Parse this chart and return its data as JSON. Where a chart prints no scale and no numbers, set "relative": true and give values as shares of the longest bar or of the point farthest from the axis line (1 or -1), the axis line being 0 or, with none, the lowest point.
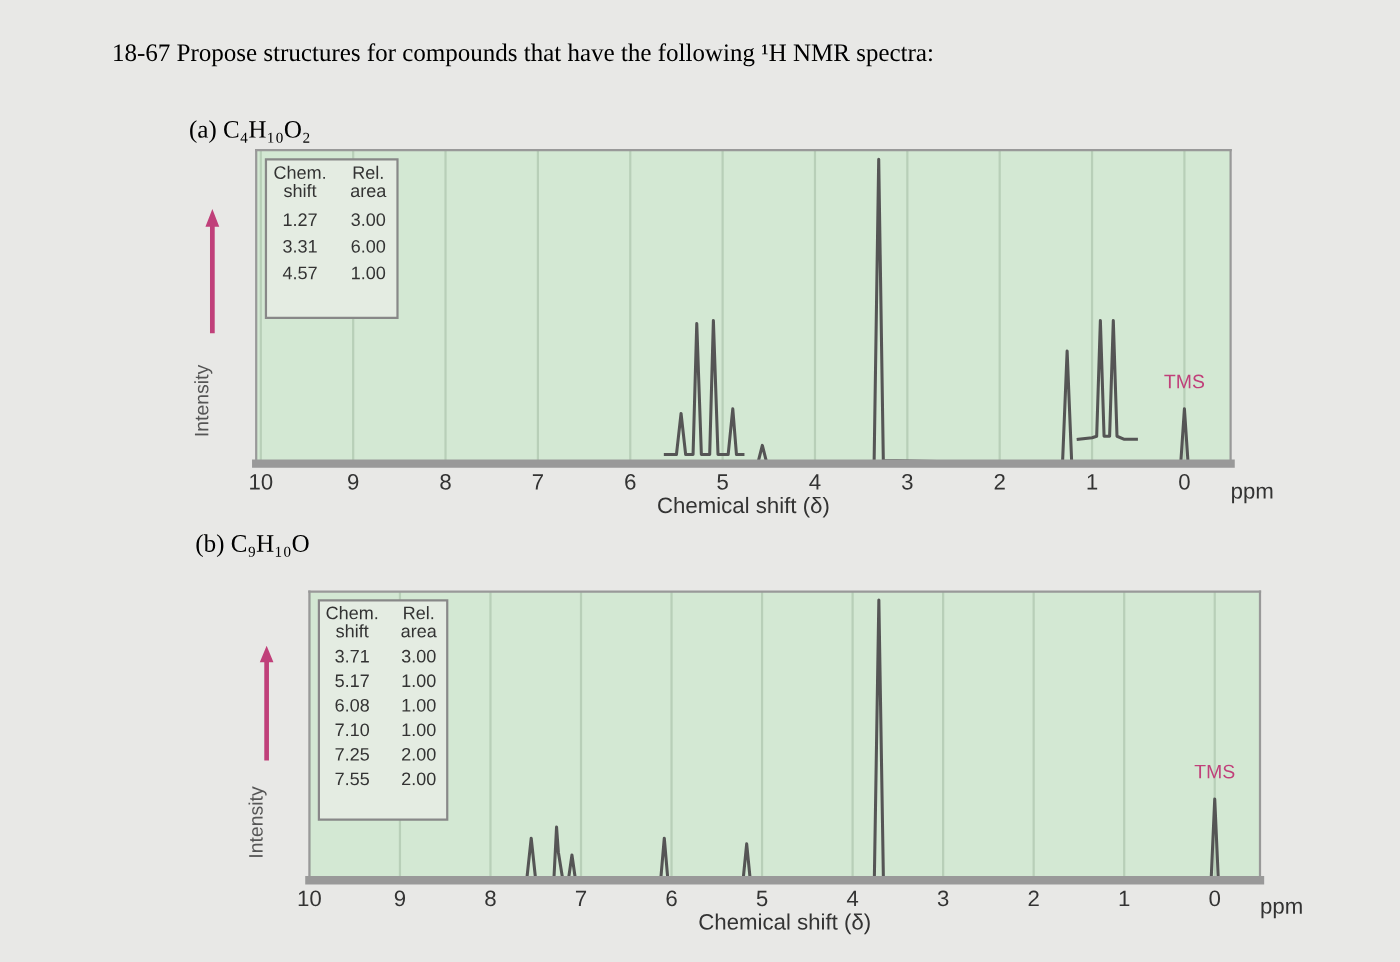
{
  "chart_data": [
    {
      "type": "line",
      "title": "18-67 Propose structures for compounds that have the following ¹H NMR spectra:",
      "subtitle": "(a) C₄H₁₀O₂",
      "xlabel": "Chemical shift (δ)",
      "ylabel": "Intensity",
      "relative": true,
      "grid": "x",
      "xlim": [
        10.05,
        -0.5
      ],
      "xticks": [
        10,
        9,
        8,
        7,
        6,
        5,
        4,
        3,
        2,
        1,
        0
      ],
      "legend": false,
      "series": [
        {
          "color": "#555555",
          "x": [
            10.05,
            4.62,
            4.57,
            4.52,
            3.36,
            3.31,
            3.26,
            1.32,
            1.27,
            1.22,
            0.04,
            0,
            -0.04,
            -0.5
          ],
          "values": [
            0,
            0,
            0.06,
            0,
            0,
            1.0,
            0.01,
            0,
            0.37,
            0,
            0,
            0.18,
            0,
            0
          ]
        },
        {
          "color": "#555555",
          "x": [
            5.62,
            5.5,
            5.45,
            5.4,
            5.32,
            5.28,
            5.23,
            5.14,
            5.1,
            5.05,
            4.94,
            4.89,
            4.85,
            4.78
          ],
          "values": [
            0.03,
            0.03,
            0.165,
            0.03,
            0.03,
            0.46,
            0.03,
            0.03,
            0.47,
            0.03,
            0.03,
            0.18,
            0.03,
            0.03
          ]
        },
        {
          "color": "#555555",
          "x": [
            1.15,
            1.0,
            0.95,
            0.91,
            0.87,
            0.81,
            0.77,
            0.73,
            0.65,
            0.52
          ],
          "values": [
            0.08,
            0.085,
            0.09,
            0.47,
            0.09,
            0.09,
            0.47,
            0.09,
            0.08,
            0.08
          ]
        }
      ],
      "annotations": [
        "Chem.\nshift",
        "Rel.\narea",
        "1.27",
        "3.00",
        "3.31",
        "6.00",
        "4.57",
        "1.00",
        "ppm",
        {
          "text": "TMS",
          "x": 0,
          "y": 0.18
        }
      ]
    },
    {
      "type": "line",
      "title": "(b) C₉H₁₀O",
      "xlabel": "Chemical shift (δ)",
      "ylabel": "Intensity",
      "relative": true,
      "grid": "x",
      "xlim": [
        10,
        -0.5
      ],
      "xticks": [
        10,
        9,
        8,
        7,
        6,
        5,
        4,
        3,
        2,
        1,
        0
      ],
      "legend": false,
      "series": [
        {
          "color": "#555555",
          "x": [
            10,
            7.6,
            7.55,
            7.5,
            7.3,
            7.27,
            7.25,
            7.2,
            7.14,
            7.1,
            7.06,
            6.12,
            6.08,
            6.04,
            5.21,
            5.17,
            5.13,
            3.76,
            3.71,
            3.66,
            0.04,
            0,
            -0.04,
            -0.5
          ],
          "values": [
            0,
            0,
            0.15,
            0,
            0,
            0.19,
            0.1,
            0,
            0,
            0.09,
            0,
            0,
            0.15,
            0,
            0,
            0.13,
            0,
            0,
            1.0,
            0.01,
            0,
            0.29,
            0,
            0
          ]
        }
      ],
      "annotations": [
        "Chem.\nshift",
        "Rel.\narea",
        "3.71",
        "3.00",
        "5.17",
        "1.00",
        "6.08",
        "1.00",
        "7.10",
        "1.00",
        "7.25",
        "2.00",
        "7.55",
        "2.00",
        "ppm",
        {
          "text": "TMS",
          "x": 0,
          "y": 0.29
        }
      ]
    }
  ]
}
